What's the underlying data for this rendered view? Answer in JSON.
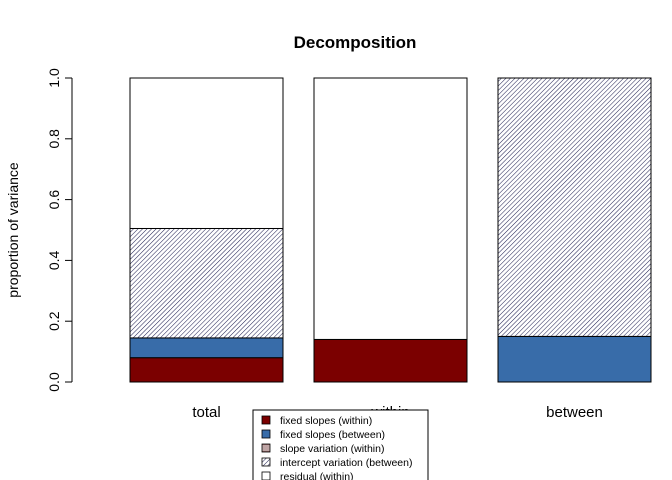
{
  "chart_data": {
    "type": "bar",
    "stacked": true,
    "title": "Decomposition",
    "xlabel": "",
    "ylabel": "proportion of variance",
    "ylim": [
      0,
      1
    ],
    "yticks": [
      "0.0",
      "0.2",
      "0.4",
      "0.6",
      "0.8",
      "1.0"
    ],
    "categories": [
      "total",
      "within",
      "between"
    ],
    "series": [
      {
        "name": "fixed slopes (within)",
        "values": [
          0.08,
          0.14,
          0.0
        ],
        "fill": "#7B0000",
        "pattern": "solid"
      },
      {
        "name": "fixed slopes (between)",
        "values": [
          0.065,
          0.0,
          0.15
        ],
        "fill": "#386CA9",
        "pattern": "solid"
      },
      {
        "name": "slope variation (within)",
        "values": [
          0.0,
          0.0,
          0.0
        ],
        "fill": "#ffffff",
        "pattern": "horizontal"
      },
      {
        "name": "intercept variation (between)",
        "values": [
          0.36,
          0.0,
          0.85
        ],
        "fill": "#ffffff",
        "pattern": "diagonal"
      },
      {
        "name": "residual (within)",
        "values": [
          0.495,
          0.86,
          0.0
        ],
        "fill": "#ffffff",
        "pattern": "solid"
      }
    ],
    "legend_position": "bottom-center"
  }
}
